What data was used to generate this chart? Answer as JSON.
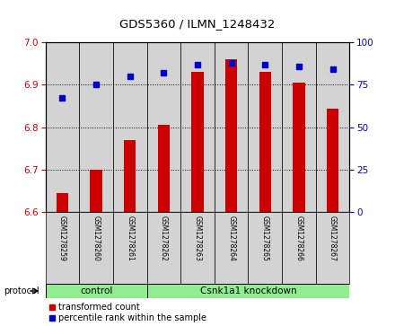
{
  "title": "GDS5360 / ILMN_1248432",
  "samples": [
    "GSM1278259",
    "GSM1278260",
    "GSM1278261",
    "GSM1278262",
    "GSM1278263",
    "GSM1278264",
    "GSM1278265",
    "GSM1278266",
    "GSM1278267"
  ],
  "transformed_count": [
    6.645,
    6.7,
    6.77,
    6.805,
    6.93,
    6.96,
    6.93,
    6.905,
    6.843
  ],
  "percentile_rank": [
    67,
    75,
    80,
    82,
    87,
    88,
    87,
    86,
    84
  ],
  "ylim_left": [
    6.6,
    7.0
  ],
  "ylim_right": [
    0,
    100
  ],
  "yticks_left": [
    6.6,
    6.7,
    6.8,
    6.9,
    7.0
  ],
  "yticks_right": [
    0,
    25,
    50,
    75,
    100
  ],
  "bar_color": "#cc0000",
  "dot_color": "#0000cc",
  "bar_bottom": 6.6,
  "control_count": 3,
  "knockdown_count": 6,
  "control_label": "control",
  "knockdown_label": "Csnk1a1 knockdown",
  "protocol_label": "protocol",
  "legend_items": [
    {
      "label": "transformed count",
      "color": "#cc0000"
    },
    {
      "label": "percentile rank within the sample",
      "color": "#0000cc"
    }
  ],
  "tick_label_color_left": "#cc0000",
  "tick_label_color_right": "#0000cc",
  "background_color": "#ffffff",
  "sample_bg_color": "#d3d3d3",
  "group_color": "#90ee90"
}
